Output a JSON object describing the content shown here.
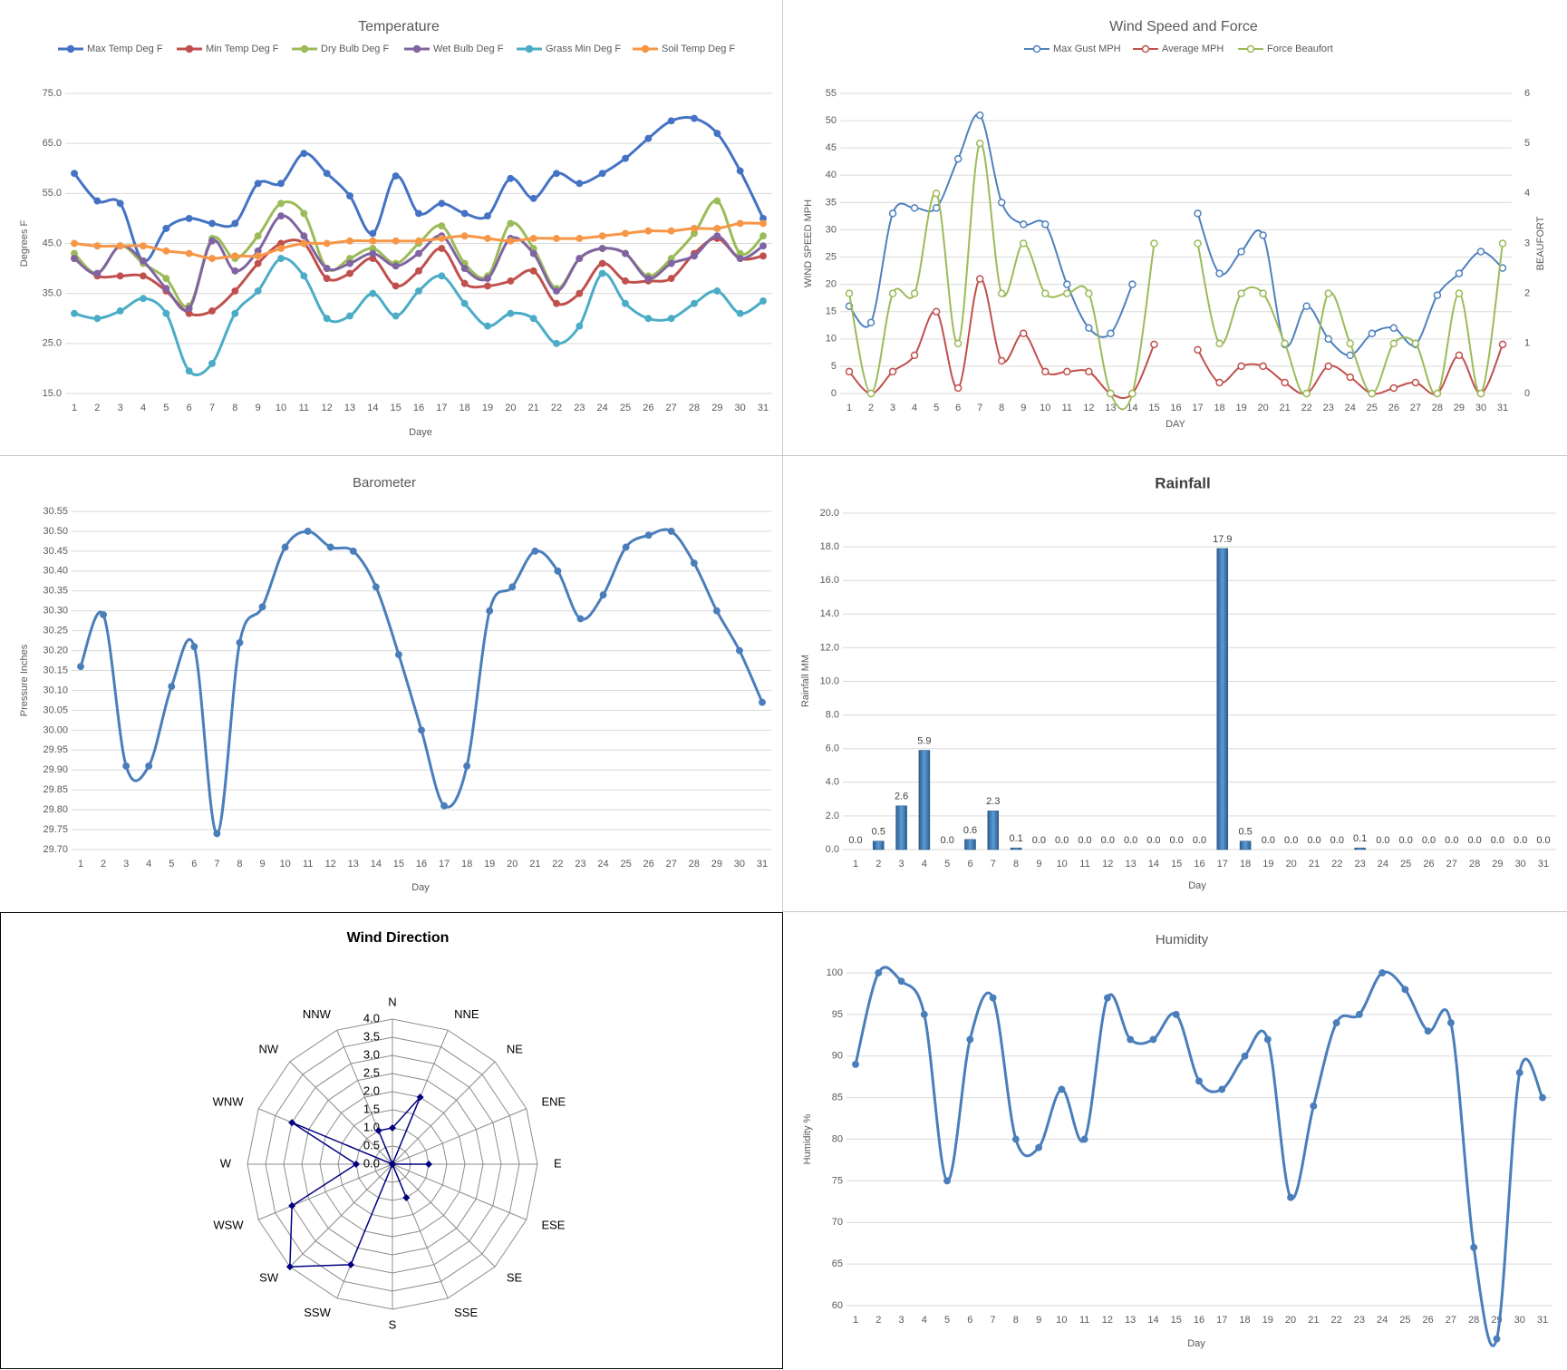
{
  "chart_data": [
    {
      "id": "temperature",
      "type": "line",
      "title": "Temperature",
      "xlabel": "Daye",
      "ylabel": "Degrees F",
      "x": [
        1,
        2,
        3,
        4,
        5,
        6,
        7,
        8,
        9,
        10,
        11,
        12,
        13,
        14,
        15,
        16,
        17,
        18,
        19,
        20,
        21,
        22,
        23,
        24,
        25,
        26,
        27,
        28,
        29,
        30,
        31
      ],
      "ylim": [
        15,
        75
      ],
      "yticks": [
        "15.0",
        "25.0",
        "35.0",
        "45.0",
        "55.0",
        "65.0",
        "75.0"
      ],
      "grid": true,
      "legend": "top",
      "series": [
        {
          "name": "Max Temp Deg F",
          "color": "#4472C4",
          "values": [
            59,
            53.5,
            53,
            41.5,
            48,
            50,
            49,
            49,
            57,
            57,
            63,
            59,
            54.5,
            47,
            58.5,
            51,
            53,
            51,
            50.5,
            58,
            54,
            59,
            57,
            59,
            62,
            66,
            69.5,
            70,
            67,
            59.5,
            50
          ]
        },
        {
          "name": "Min Temp Deg F",
          "color": "#C0504D",
          "values": [
            42,
            38.5,
            38.5,
            38.5,
            35.5,
            31,
            31.5,
            35.5,
            41,
            45,
            45,
            38,
            39,
            42,
            36.5,
            39.5,
            44,
            37,
            36.5,
            37.5,
            39.5,
            33,
            35,
            41,
            37.5,
            37.5,
            38,
            43,
            46,
            42,
            42.5
          ]
        },
        {
          "name": "Dry Bulb Deg F",
          "color": "#9BBB59",
          "values": [
            43,
            39,
            44.5,
            41,
            38,
            32.5,
            46,
            42,
            46.5,
            53,
            51,
            40,
            42,
            44,
            41,
            45,
            48.5,
            41,
            38.5,
            49,
            44,
            36,
            42,
            44,
            43,
            38.5,
            42,
            47,
            53.5,
            43,
            46.5
          ]
        },
        {
          "name": "Wet Bulb Deg F",
          "color": "#8064A2",
          "values": [
            42,
            39,
            44.5,
            41.5,
            36,
            32,
            45.5,
            39.5,
            43.5,
            50.5,
            46.5,
            40,
            41,
            43,
            40.5,
            43,
            46.5,
            40,
            38,
            46,
            43,
            35.5,
            42,
            44,
            43,
            38,
            41,
            42.5,
            46.5,
            42,
            44.5
          ]
        },
        {
          "name": "Grass Min Deg F",
          "color": "#4BACC6",
          "values": [
            31,
            30,
            31.5,
            34,
            31,
            19.5,
            21,
            31,
            35.5,
            42,
            38.5,
            30,
            30.5,
            35,
            30.5,
            35.5,
            38.5,
            33,
            28.5,
            31,
            30,
            25,
            28.5,
            39,
            33,
            30,
            30,
            33,
            35.5,
            31,
            33.5
          ]
        },
        {
          "name": "Soil Temp Deg F",
          "color": "#F79646",
          "values": [
            45,
            44.5,
            44.5,
            44.5,
            43.5,
            43,
            42,
            42.5,
            42.5,
            44,
            45,
            45,
            45.5,
            45.5,
            45.5,
            45.5,
            46,
            46.5,
            46,
            45.5,
            46,
            46,
            46,
            46.5,
            47,
            47.5,
            47.5,
            48,
            48,
            49,
            49
          ]
        }
      ]
    },
    {
      "id": "wind",
      "type": "line",
      "title": "Wind Speed and Force",
      "xlabel": "DAY",
      "ylabel": "WIND SPEED MPH",
      "ylabel2": "BEAUFORT",
      "x": [
        1,
        2,
        3,
        4,
        5,
        6,
        7,
        8,
        9,
        10,
        11,
        12,
        13,
        14,
        15,
        16,
        17,
        18,
        19,
        20,
        21,
        22,
        23,
        24,
        25,
        26,
        27,
        28,
        29,
        30,
        31
      ],
      "ylim": [
        0,
        55
      ],
      "yticks": [
        "0",
        "5",
        "10",
        "15",
        "20",
        "25",
        "30",
        "35",
        "40",
        "45",
        "50",
        "55"
      ],
      "ylim2": [
        0,
        6
      ],
      "yticks2": [
        "0",
        "1",
        "2",
        "3",
        "4",
        "5",
        "6"
      ],
      "grid": true,
      "legend": "top",
      "series": [
        {
          "name": "Max Gust MPH",
          "color": "#4F81BD",
          "axis": "left",
          "values": [
            16,
            13,
            33,
            34,
            34,
            43,
            51,
            35,
            31,
            31,
            20,
            12,
            11,
            20,
            null,
            null,
            33,
            22,
            26,
            29,
            9,
            16,
            10,
            7,
            11,
            12,
            9,
            18,
            22,
            26,
            23
          ]
        },
        {
          "name": "Average MPH",
          "color": "#C0504D",
          "axis": "left",
          "values": [
            4,
            0,
            4,
            7,
            15,
            1,
            21,
            6,
            11,
            4,
            4,
            4,
            0,
            0,
            9,
            null,
            8,
            2,
            5,
            5,
            2,
            0,
            5,
            3,
            0,
            1,
            2,
            0,
            7,
            0,
            9
          ]
        },
        {
          "name": "Force Beaufort",
          "color": "#9BBB59",
          "axis": "right",
          "values": [
            2,
            0,
            2,
            2,
            4,
            1,
            5,
            2,
            3,
            2,
            2,
            2,
            0,
            0,
            3,
            null,
            3,
            1,
            2,
            2,
            1,
            0,
            2,
            1,
            0,
            1,
            1,
            0,
            2,
            0,
            3
          ]
        }
      ]
    },
    {
      "id": "barometer",
      "type": "line",
      "title": "Barometer",
      "xlabel": "Day",
      "ylabel": "Pressure Inches",
      "x": [
        1,
        2,
        3,
        4,
        5,
        6,
        7,
        8,
        9,
        10,
        11,
        12,
        13,
        14,
        15,
        16,
        17,
        18,
        19,
        20,
        21,
        22,
        23,
        24,
        25,
        26,
        27,
        28,
        29,
        30,
        31
      ],
      "ylim": [
        29.7,
        30.55
      ],
      "yticks": [
        "29.70",
        "29.75",
        "29.80",
        "29.85",
        "29.90",
        "29.95",
        "30.00",
        "30.05",
        "30.10",
        "30.15",
        "30.20",
        "30.25",
        "30.30",
        "30.35",
        "30.40",
        "30.45",
        "30.50",
        "30.55"
      ],
      "grid": true,
      "series": [
        {
          "color": "#4A7EBB",
          "values": [
            30.16,
            30.29,
            29.91,
            29.91,
            30.11,
            30.21,
            29.74,
            30.22,
            30.31,
            30.46,
            30.5,
            30.46,
            30.45,
            30.36,
            30.19,
            30.0,
            29.81,
            29.91,
            30.3,
            30.36,
            30.45,
            30.4,
            30.28,
            30.34,
            30.46,
            30.49,
            30.5,
            30.42,
            30.3,
            30.2,
            30.07
          ]
        }
      ]
    },
    {
      "id": "rainfall",
      "type": "bar",
      "title": "Rainfall",
      "xlabel": "Day",
      "ylabel": "Rainfall MM",
      "categories": [
        "1",
        "2",
        "3",
        "4",
        "5",
        "6",
        "7",
        "8",
        "9",
        "10",
        "11",
        "12",
        "13",
        "14",
        "15",
        "16",
        "17",
        "18",
        "19",
        "20",
        "21",
        "22",
        "23",
        "24",
        "25",
        "26",
        "27",
        "28",
        "29",
        "30",
        "31"
      ],
      "values": [
        0,
        0.5,
        2.6,
        5.9,
        0,
        0.6,
        2.3,
        0.1,
        0,
        0,
        0,
        0,
        0,
        0,
        0,
        0,
        17.9,
        0.5,
        0,
        0,
        0,
        0,
        0.1,
        0,
        0,
        0,
        0,
        0,
        0,
        0,
        0
      ],
      "data_labels": [
        "0.0",
        "0.5",
        "2.6",
        "5.9",
        "0.0",
        "0.6",
        "2.3",
        "0.1",
        "0.0",
        "0.0",
        "0.0",
        "0.0",
        "0.0",
        "0.0",
        "0.0",
        "0.0",
        "17.9",
        "0.5",
        "0.0",
        "0.0",
        "0.0",
        "0.0",
        "0.1",
        "0.0",
        "0.0",
        "0.0",
        "0.0",
        "0.0",
        "0.0",
        "0.0",
        "0.0"
      ],
      "ylim": [
        0,
        20
      ],
      "yticks": [
        "0.0",
        "2.0",
        "4.0",
        "6.0",
        "8.0",
        "10.0",
        "12.0",
        "14.0",
        "16.0",
        "18.0",
        "20.0"
      ],
      "grid": true,
      "color": "#4A7EBB"
    },
    {
      "id": "wind_direction",
      "type": "radar",
      "title": "Wind Direction",
      "categories": [
        "N",
        "NNE",
        "NE",
        "ENE",
        "E",
        "ESE",
        "SE",
        "SSE",
        "S",
        "SSW",
        "SW",
        "WSW",
        "W",
        "WNW",
        "NW",
        "NNW"
      ],
      "values": [
        1,
        2,
        0,
        0,
        1,
        0,
        0,
        1,
        0,
        3,
        4,
        3,
        1,
        3,
        0,
        1
      ],
      "rlim": [
        0,
        4
      ],
      "rticks": [
        "0.0",
        "0.5",
        "1.0",
        "1.5",
        "2.0",
        "2.5",
        "3.0",
        "3.5",
        "4.0"
      ],
      "color": "#000080"
    },
    {
      "id": "humidity",
      "type": "line",
      "title": "Humidity",
      "xlabel": "Day",
      "ylabel": "Humidity %",
      "x": [
        1,
        2,
        3,
        4,
        5,
        6,
        7,
        8,
        9,
        10,
        11,
        12,
        13,
        14,
        15,
        16,
        17,
        18,
        19,
        20,
        21,
        22,
        23,
        24,
        25,
        26,
        27,
        28,
        29,
        30,
        31
      ],
      "ylim": [
        60,
        100
      ],
      "yticks": [
        "60",
        "65",
        "70",
        "75",
        "80",
        "85",
        "90",
        "95",
        "100"
      ],
      "grid": true,
      "series": [
        {
          "color": "#4A7EBB",
          "values": [
            89,
            100,
            99,
            95,
            75,
            92,
            97,
            80,
            79,
            86,
            80,
            97,
            92,
            92,
            95,
            87,
            86,
            90,
            92,
            73,
            84,
            94,
            95,
            100,
            98,
            93,
            94,
            67,
            56,
            88,
            85
          ]
        }
      ]
    }
  ]
}
